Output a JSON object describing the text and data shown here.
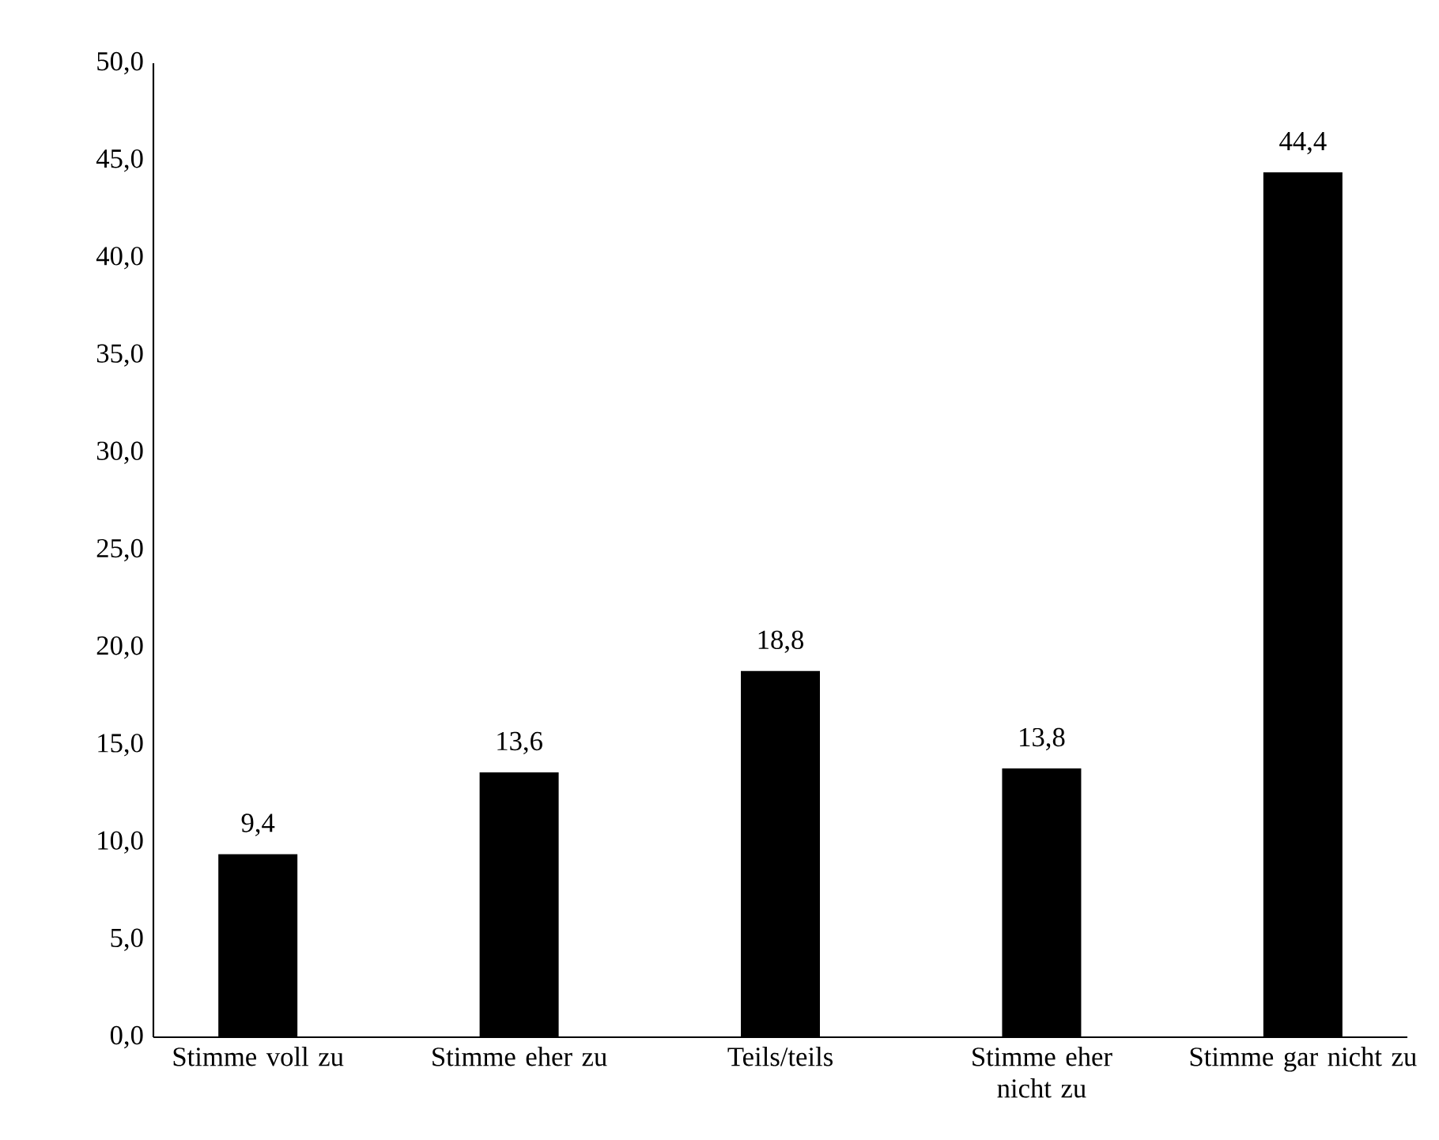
{
  "chart_data": {
    "type": "bar",
    "categories": [
      "Stimme voll zu",
      "Stimme eher zu",
      "Teils/teils",
      "Stimme eher nicht zu",
      "Stimme gar nicht zu"
    ],
    "values": [
      9.4,
      13.6,
      18.8,
      13.8,
      44.4
    ],
    "value_labels": [
      "9,4",
      "13,6",
      "18,8",
      "13,8",
      "44,4"
    ],
    "color": "#000000",
    "ylim": [
      0,
      50
    ],
    "yticks": [
      {
        "value": 0,
        "label": "0,0"
      },
      {
        "value": 5,
        "label": "5,0"
      },
      {
        "value": 10,
        "label": "10,0"
      },
      {
        "value": 15,
        "label": "15,0"
      },
      {
        "value": 20,
        "label": "20,0"
      },
      {
        "value": 25,
        "label": "25,0"
      },
      {
        "value": 30,
        "label": "30,0"
      },
      {
        "value": 35,
        "label": "35,0"
      },
      {
        "value": 40,
        "label": "40,0"
      },
      {
        "value": 45,
        "label": "45,0"
      },
      {
        "value": 50,
        "label": "50,0"
      }
    ]
  }
}
